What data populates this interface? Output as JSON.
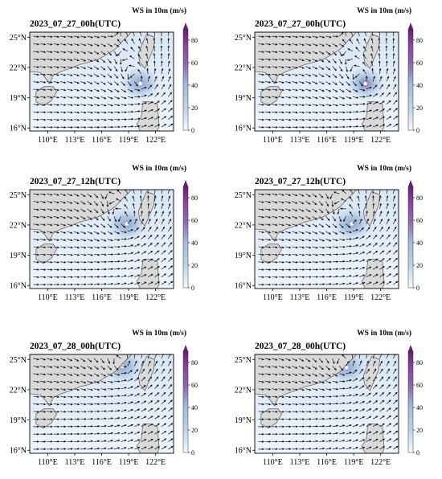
{
  "figure": {
    "colorbar_title": "WS in 10m (m/s)",
    "colorbar_ticks": [
      "0",
      "20",
      "40",
      "60",
      "80"
    ],
    "colorbar_range": [
      0,
      90
    ],
    "colors": {
      "low": "#f7fbff",
      "mid": "#9ebcda",
      "high": "#6a1b74",
      "land": "#d9d9d9",
      "coast": "#555555"
    }
  },
  "chart_data": [
    {
      "type": "heatmap",
      "title": "2023_07_27_00h(UTC)",
      "xlabel": "",
      "ylabel": "",
      "xticks": [
        "110°E",
        "113°E",
        "116°E",
        "119°E",
        "122°E"
      ],
      "yticks": [
        "25°N",
        "22°N",
        "19°N",
        "16°N"
      ],
      "xlim": [
        108,
        124
      ],
      "ylim": [
        15.7,
        25.5
      ],
      "value_label": "WS in 10m (m/s)",
      "vmin": 0,
      "vmax": 90,
      "vortex": {
        "lon": 120.3,
        "lat": 20.4,
        "max_ws": 45
      }
    },
    {
      "type": "heatmap",
      "title": "2023_07_27_00h(UTC)",
      "xlabel": "",
      "ylabel": "",
      "xticks": [
        "110°E",
        "113°E",
        "116°E",
        "119°E",
        "122°E"
      ],
      "yticks": [
        "25°N",
        "22°N",
        "19°N",
        "16°N"
      ],
      "xlim": [
        108,
        124
      ],
      "ylim": [
        15.7,
        25.5
      ],
      "value_label": "WS in 10m (m/s)",
      "vmin": 0,
      "vmax": 90,
      "vortex": {
        "lon": 120.3,
        "lat": 20.4,
        "max_ws": 55
      }
    },
    {
      "type": "heatmap",
      "title": "2023_07_27_12h(UTC)",
      "xlabel": "",
      "ylabel": "",
      "xticks": [
        "110°E",
        "113°E",
        "116°E",
        "119°E",
        "122°E"
      ],
      "yticks": [
        "25°N",
        "22°N",
        "19°N",
        "16°N"
      ],
      "xlim": [
        108,
        124
      ],
      "ylim": [
        15.7,
        25.5
      ],
      "value_label": "WS in 10m (m/s)",
      "vmin": 0,
      "vmax": 90,
      "vortex": {
        "lon": 118.8,
        "lat": 22.1,
        "max_ws": 40
      }
    },
    {
      "type": "heatmap",
      "title": "2023_07_27_12h(UTC)",
      "xlabel": "",
      "ylabel": "",
      "xticks": [
        "110°E",
        "113°E",
        "116°E",
        "119°E",
        "122°E"
      ],
      "yticks": [
        "25°N",
        "22°N",
        "19°N",
        "16°N"
      ],
      "xlim": [
        108,
        124
      ],
      "ylim": [
        15.7,
        25.5
      ],
      "value_label": "WS in 10m (m/s)",
      "vmin": 0,
      "vmax": 90,
      "vortex": {
        "lon": 118.8,
        "lat": 22.1,
        "max_ws": 45
      }
    },
    {
      "type": "heatmap",
      "title": "2023_07_28_00h(UTC)",
      "xlabel": "",
      "ylabel": "",
      "xticks": [
        "110°E",
        "113°E",
        "116°E",
        "119°E",
        "122°E"
      ],
      "yticks": [
        "25°N",
        "22°N",
        "19°N",
        "16°N"
      ],
      "xlim": [
        108,
        124
      ],
      "ylim": [
        15.7,
        25.5
      ],
      "value_label": "WS in 10m (m/s)",
      "vmin": 0,
      "vmax": 90,
      "vortex": {
        "lon": 118.3,
        "lat": 24.3,
        "max_ws": 30
      }
    },
    {
      "type": "heatmap",
      "title": "2023_07_28_00h(UTC)",
      "xlabel": "",
      "ylabel": "",
      "xticks": [
        "110°E",
        "113°E",
        "116°E",
        "119°E",
        "122°E"
      ],
      "yticks": [
        "25°N",
        "22°N",
        "19°N",
        "16°N"
      ],
      "xlim": [
        108,
        124
      ],
      "ylim": [
        15.7,
        25.5
      ],
      "value_label": "WS in 10m (m/s)",
      "vmin": 0,
      "vmax": 90,
      "vortex": {
        "lon": 118.2,
        "lat": 24.2,
        "max_ws": 40
      }
    }
  ]
}
